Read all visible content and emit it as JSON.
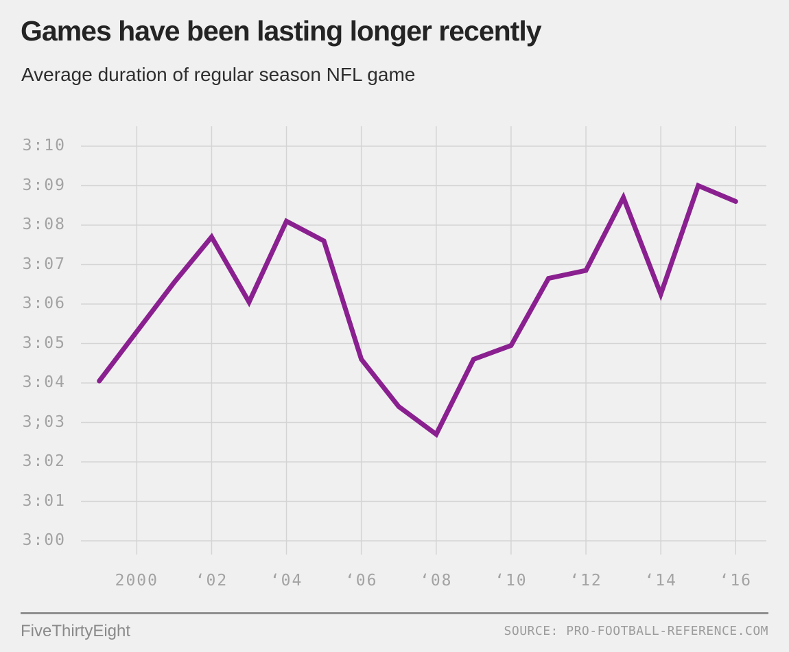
{
  "header": {
    "title": "Games have been lasting longer recently",
    "subtitle": "Average duration of regular season NFL game"
  },
  "chart_data": {
    "type": "line",
    "title": "Games have been lasting longer recently",
    "subtitle": "Average duration of regular season NFL game",
    "x_years": [
      1999,
      2000,
      2001,
      2002,
      2003,
      2004,
      2005,
      2006,
      2007,
      2008,
      2009,
      2010,
      2011,
      2012,
      2013,
      2014,
      2015,
      2016
    ],
    "values_minutes_past_3h": [
      4.05,
      5.3,
      6.55,
      7.7,
      6.05,
      8.1,
      7.6,
      4.6,
      3.4,
      2.7,
      4.6,
      4.95,
      6.65,
      6.85,
      8.7,
      6.25,
      9.0,
      8.6
    ],
    "values_hmm": [
      "3:04",
      "3:05",
      "3:07",
      "3:08",
      "3:06",
      "3:08",
      "3:08",
      "3:05",
      "3:03",
      "3:03",
      "3:05",
      "3:05",
      "3:07",
      "3:07",
      "3:09",
      "3:06",
      "3:09",
      "3:09"
    ],
    "unit": "average game duration (hours:minutes)",
    "y_tick_labels": [
      "3:10",
      "3:09",
      "3:08",
      "3:07",
      "3:06",
      "3:05",
      "3:04",
      "3;03",
      "3:02",
      "3:01",
      "3:00"
    ],
    "y_tick_minutes_past_3h": [
      10,
      9,
      8,
      7,
      6,
      5,
      4,
      3,
      2,
      1,
      0
    ],
    "x_tick_labels": [
      "2000",
      "‘02",
      "‘04",
      "‘06",
      "‘08",
      "‘10",
      "‘12",
      "‘14",
      "‘16"
    ],
    "x_tick_years": [
      2000,
      2002,
      2004,
      2006,
      2008,
      2010,
      2012,
      2014,
      2016
    ],
    "xlim_years": [
      1999,
      2016
    ],
    "ylim_minutes_past_3h": [
      0,
      10
    ],
    "grid": true,
    "legend": false
  },
  "colors": {
    "background": "#F0F0F0",
    "line": "#8A2090",
    "grid": "#D4D4D4",
    "tick_text": "#A3A3A3",
    "title_text": "#242424",
    "footer_rule": "#8F8F8F",
    "footer_text": "#8A8A8A",
    "source_text": "#9C9C9C"
  },
  "footer": {
    "brand": "FiveThirtyEight",
    "source": "SOURCE: PRO-FOOTBALL-REFERENCE.COM"
  }
}
